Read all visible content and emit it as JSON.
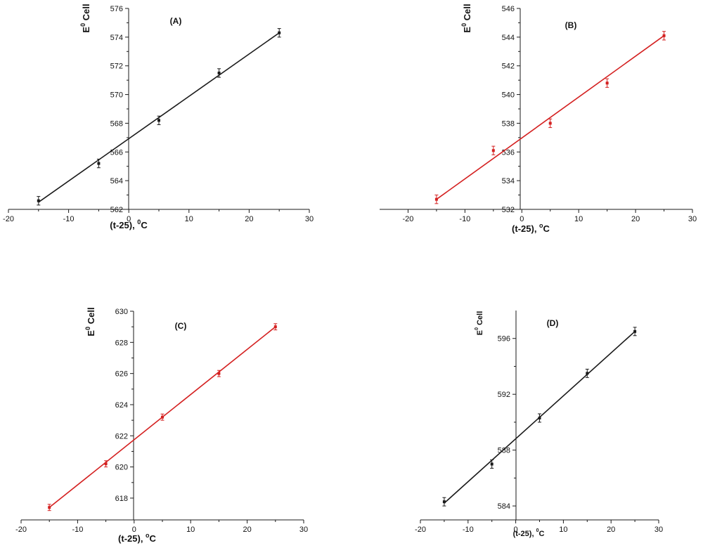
{
  "chart_data": [
    {
      "type": "scatter",
      "panel_label": "(A)",
      "xlabel": "(t-25), ",
      "xlabel_unit": "C",
      "xlabel_sup": "0",
      "ylabel": "E",
      "ylabel_sup": "0",
      "ylabel_rest": " Cell",
      "xlim": [
        -20,
        30
      ],
      "ylim": [
        562,
        576
      ],
      "xticks": [
        -20,
        -10,
        0,
        10,
        20,
        30
      ],
      "yticks": [
        562,
        564,
        566,
        568,
        570,
        572,
        574,
        576
      ],
      "color": "#1a1a1a",
      "x": [
        -15,
        -5,
        5,
        15,
        25
      ],
      "y": [
        562.6,
        565.2,
        568.2,
        571.5,
        574.3
      ],
      "error": [
        0.3,
        0.3,
        0.3,
        0.3,
        0.3
      ],
      "fit": {
        "x": [
          -15,
          25
        ],
        "y": [
          562.5,
          574.3
        ]
      }
    },
    {
      "type": "scatter",
      "panel_label": "(B)",
      "xlabel": "(t-25), ",
      "xlabel_unit": "C",
      "xlabel_sup": "o",
      "ylabel": "E",
      "ylabel_sup": "0",
      "ylabel_rest": " Cell",
      "xlim": [
        -25,
        30
      ],
      "ylim": [
        532,
        546
      ],
      "xticks": [
        -20,
        -10,
        0,
        10,
        20,
        30
      ],
      "yticks": [
        532,
        534,
        536,
        538,
        540,
        542,
        544,
        546
      ],
      "color": "#d42020",
      "x": [
        -15,
        -5,
        5,
        15,
        25
      ],
      "y": [
        532.7,
        536.1,
        538.0,
        540.8,
        544.1
      ],
      "error": [
        0.3,
        0.3,
        0.3,
        0.3,
        0.3
      ],
      "fit": {
        "x": [
          -15,
          25
        ],
        "y": [
          532.7,
          544.1
        ]
      }
    },
    {
      "type": "scatter",
      "panel_label": "(C)",
      "xlabel": "(t-25), ",
      "xlabel_unit": "C",
      "xlabel_sup": "o",
      "ylabel": "E",
      "ylabel_sup": "0",
      "ylabel_rest": " Cell",
      "xlim": [
        -20,
        30
      ],
      "ylim": [
        616.6,
        630
      ],
      "xticks": [
        -20,
        -10,
        0,
        10,
        20,
        30
      ],
      "yticks": [
        618,
        620,
        622,
        624,
        626,
        628,
        630
      ],
      "color": "#d42020",
      "x": [
        -15,
        -5,
        5,
        15,
        25
      ],
      "y": [
        617.4,
        620.2,
        623.2,
        626.0,
        629.0
      ],
      "error": [
        0.2,
        0.2,
        0.2,
        0.2,
        0.2
      ],
      "fit": {
        "x": [
          -15,
          25
        ],
        "y": [
          617.4,
          629.0
        ]
      }
    },
    {
      "type": "scatter",
      "panel_label": "(D)",
      "xlabel": "(t-25), ",
      "xlabel_unit": "C",
      "xlabel_sup": "0",
      "ylabel": "E",
      "ylabel_sup": "0",
      "ylabel_rest": " Cell",
      "xlim": [
        -20,
        30
      ],
      "ylim": [
        583,
        598
      ],
      "xticks": [
        -20,
        -10,
        0,
        10,
        20,
        30
      ],
      "yticks": [
        584,
        588,
        592,
        596
      ],
      "color": "#1a1a1a",
      "x": [
        -15,
        -5,
        5,
        15,
        25
      ],
      "y": [
        584.3,
        587.0,
        590.3,
        593.5,
        596.5
      ],
      "error": [
        0.3,
        0.3,
        0.3,
        0.3,
        0.3
      ],
      "fit": {
        "x": [
          -15,
          25
        ],
        "y": [
          584.2,
          596.5
        ]
      }
    }
  ]
}
